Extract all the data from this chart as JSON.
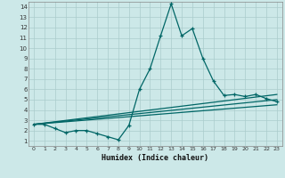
{
  "title": "",
  "xlabel": "Humidex (Indice chaleur)",
  "bg_color": "#cce8e8",
  "line_color": "#006666",
  "grid_color": "#aacccc",
  "xlim": [
    -0.5,
    23.5
  ],
  "ylim": [
    0.5,
    14.5
  ],
  "xticks": [
    0,
    1,
    2,
    3,
    4,
    5,
    6,
    7,
    8,
    9,
    10,
    11,
    12,
    13,
    14,
    15,
    16,
    17,
    18,
    19,
    20,
    21,
    22,
    23
  ],
  "yticks": [
    1,
    2,
    3,
    4,
    5,
    6,
    7,
    8,
    9,
    10,
    11,
    12,
    13,
    14
  ],
  "main_x": [
    0,
    1,
    2,
    3,
    4,
    5,
    6,
    7,
    8,
    9,
    10,
    11,
    12,
    13,
    14,
    15,
    16,
    17,
    18,
    19,
    20,
    21,
    22,
    23
  ],
  "main_y": [
    2.6,
    2.6,
    2.2,
    1.8,
    2.0,
    2.0,
    1.7,
    1.4,
    1.1,
    2.5,
    6.0,
    8.0,
    11.2,
    14.3,
    11.2,
    11.9,
    9.0,
    6.8,
    5.4,
    5.5,
    5.3,
    5.5,
    5.1,
    4.8
  ],
  "line1_x": [
    0,
    23
  ],
  "line1_y": [
    2.6,
    4.5
  ],
  "line2_x": [
    0,
    23
  ],
  "line2_y": [
    2.6,
    5.0
  ],
  "line3_x": [
    0,
    23
  ],
  "line3_y": [
    2.6,
    5.5
  ]
}
